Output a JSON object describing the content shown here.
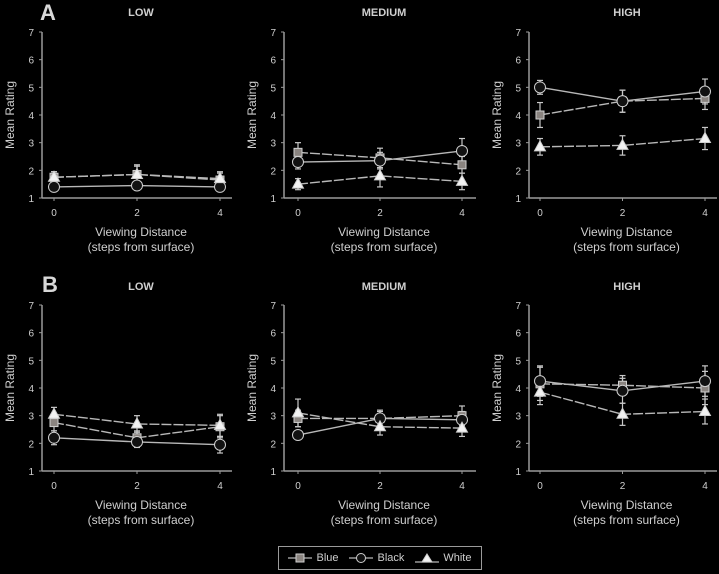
{
  "figure": {
    "row_labels": [
      "A",
      "B"
    ],
    "legend": [
      {
        "label": "Blue",
        "marker": "square",
        "fill": "#8a8480"
      },
      {
        "label": "Black",
        "marker": "circle",
        "fill": "#111111"
      },
      {
        "label": "White",
        "marker": "triangle",
        "fill": "#f2f2f2"
      }
    ],
    "colors": {
      "background": "#000000",
      "axis": "#9a9a9a",
      "text": "#cfcfcf",
      "line": "#b8b8b8"
    }
  },
  "chart_data": [
    {
      "type": "line",
      "panel": "A",
      "title": "LOW",
      "xlabel": "Viewing Distance\n(steps from surface)",
      "ylabel": "Mean Rating",
      "x": [
        0,
        2,
        4
      ],
      "xticks": [
        "0",
        "2",
        "4"
      ],
      "ylim": [
        1,
        7
      ],
      "yticks": [
        "1",
        "2",
        "3",
        "4",
        "5",
        "6",
        "7"
      ],
      "series": [
        {
          "name": "Blue",
          "values": [
            1.75,
            1.85,
            1.65
          ],
          "err": [
            0.2,
            0.35,
            0.25
          ]
        },
        {
          "name": "Black",
          "values": [
            1.4,
            1.45,
            1.4
          ],
          "err": [
            0.15,
            0.15,
            0.15
          ]
        },
        {
          "name": "White",
          "values": [
            1.75,
            1.85,
            1.7
          ],
          "err": [
            0.2,
            0.3,
            0.25
          ]
        }
      ]
    },
    {
      "type": "line",
      "panel": "A",
      "title": "MEDIUM",
      "xlabel": "Viewing Distance\n(steps from surface)",
      "ylabel": "Mean Rating",
      "x": [
        0,
        2,
        4
      ],
      "xticks": [
        "0",
        "2",
        "4"
      ],
      "ylim": [
        1,
        7
      ],
      "yticks": [
        "1",
        "2",
        "3",
        "4",
        "5",
        "6",
        "7"
      ],
      "series": [
        {
          "name": "Blue",
          "values": [
            2.65,
            2.45,
            2.2
          ],
          "err": [
            0.35,
            0.35,
            0.3
          ]
        },
        {
          "name": "Black",
          "values": [
            2.3,
            2.35,
            2.7
          ],
          "err": [
            0.25,
            0.3,
            0.45
          ]
        },
        {
          "name": "White",
          "values": [
            1.5,
            1.8,
            1.6
          ],
          "err": [
            0.2,
            0.4,
            0.3
          ]
        }
      ]
    },
    {
      "type": "line",
      "panel": "A",
      "title": "HIGH",
      "xlabel": "Viewing Distance\n(steps from surface)",
      "ylabel": "Mean Rating",
      "x": [
        0,
        2,
        4
      ],
      "xticks": [
        "0",
        "2",
        "4"
      ],
      "ylim": [
        1,
        7
      ],
      "yticks": [
        "1",
        "2",
        "3",
        "4",
        "5",
        "6",
        "7"
      ],
      "series": [
        {
          "name": "Blue",
          "values": [
            4.0,
            4.5,
            4.6
          ],
          "err": [
            0.45,
            0.4,
            0.4
          ]
        },
        {
          "name": "Black",
          "values": [
            5.0,
            4.5,
            4.85
          ],
          "err": [
            0.25,
            0.4,
            0.45
          ]
        },
        {
          "name": "White",
          "values": [
            2.85,
            2.9,
            3.15
          ],
          "err": [
            0.3,
            0.35,
            0.4
          ]
        }
      ]
    },
    {
      "type": "line",
      "panel": "B",
      "title": "LOW",
      "xlabel": "Viewing Distance\n(steps from surface)",
      "ylabel": "Mean Rating",
      "x": [
        0,
        2,
        4
      ],
      "xticks": [
        "0",
        "2",
        "4"
      ],
      "ylim": [
        1,
        7
      ],
      "yticks": [
        "1",
        "2",
        "3",
        "4",
        "5",
        "6",
        "7"
      ],
      "series": [
        {
          "name": "Blue",
          "values": [
            2.75,
            2.2,
            2.6
          ],
          "err": [
            0.3,
            0.25,
            0.4
          ]
        },
        {
          "name": "Black",
          "values": [
            2.2,
            2.05,
            1.95
          ],
          "err": [
            0.25,
            0.2,
            0.3
          ]
        },
        {
          "name": "White",
          "values": [
            3.05,
            2.7,
            2.65
          ],
          "err": [
            0.25,
            0.3,
            0.4
          ]
        }
      ]
    },
    {
      "type": "line",
      "panel": "B",
      "title": "MEDIUM",
      "xlabel": "Viewing Distance\n(steps from surface)",
      "ylabel": "Mean Rating",
      "x": [
        0,
        2,
        4
      ],
      "xticks": [
        "0",
        "2",
        "4"
      ],
      "ylim": [
        1,
        7
      ],
      "yticks": [
        "1",
        "2",
        "3",
        "4",
        "5",
        "6",
        "7"
      ],
      "series": [
        {
          "name": "Blue",
          "values": [
            2.9,
            2.9,
            3.0
          ],
          "err": [
            0.3,
            0.3,
            0.35
          ]
        },
        {
          "name": "Black",
          "values": [
            2.3,
            2.9,
            2.85
          ],
          "err": [
            0.15,
            0.25,
            0.3
          ]
        },
        {
          "name": "White",
          "values": [
            3.1,
            2.6,
            2.55
          ],
          "err": [
            0.5,
            0.3,
            0.3
          ]
        }
      ]
    },
    {
      "type": "line",
      "panel": "B",
      "title": "HIGH",
      "xlabel": "Viewing Distance\n(steps from surface)",
      "ylabel": "Mean Rating",
      "x": [
        0,
        2,
        4
      ],
      "xticks": [
        "0",
        "2",
        "4"
      ],
      "ylim": [
        1,
        7
      ],
      "yticks": [
        "1",
        "2",
        "3",
        "4",
        "5",
        "6",
        "7"
      ],
      "series": [
        {
          "name": "Blue",
          "values": [
            4.15,
            4.1,
            4.0
          ],
          "err": [
            0.6,
            0.35,
            0.6
          ]
        },
        {
          "name": "Black",
          "values": [
            4.25,
            3.9,
            4.25
          ],
          "err": [
            0.55,
            0.45,
            0.55
          ]
        },
        {
          "name": "White",
          "values": [
            3.85,
            3.05,
            3.15
          ],
          "err": [
            0.45,
            0.4,
            0.45
          ]
        }
      ]
    }
  ]
}
